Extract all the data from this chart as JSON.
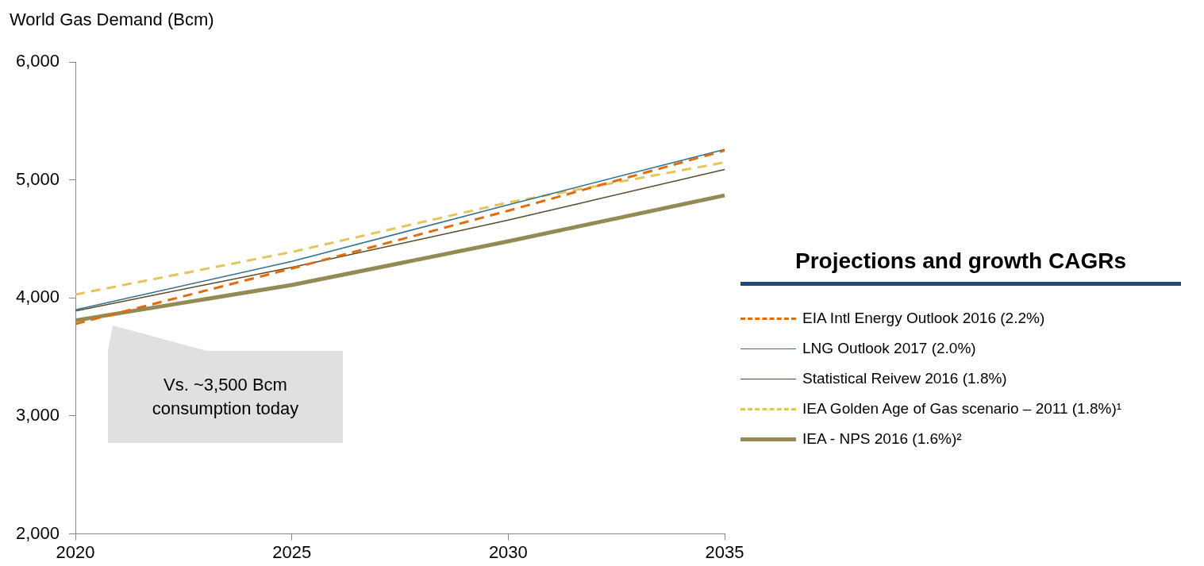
{
  "chart_data": {
    "type": "line",
    "ylabel": "World Gas Demand (Bcm)",
    "legend_title": "Projections and growth CAGRs",
    "legend": "right",
    "grid": false,
    "marker": "none",
    "x": [
      2020,
      2025,
      2030,
      2035
    ],
    "xlim": [
      2020,
      2035
    ],
    "xticks": [
      2020,
      2025,
      2030,
      2035
    ],
    "ylim": [
      2000,
      6000
    ],
    "yticks": [
      {
        "value": 2000,
        "label": "2,000"
      },
      {
        "value": 3000,
        "label": "3,000"
      },
      {
        "value": 4000,
        "label": "4,000"
      },
      {
        "value": 5000,
        "label": "5,000"
      },
      {
        "value": 6000,
        "label": "6,000"
      }
    ],
    "series": [
      {
        "name": "EIA Intl Energy Outlook 2016 (2.2%)",
        "color": "#e36c0a",
        "line_style": "dashed",
        "values": [
          3780,
          4250,
          4740,
          5250
        ]
      },
      {
        "name": "LNG Outlook 2017 (2.0%)",
        "color": "#31708f",
        "line_style": "solid",
        "values": [
          3900,
          4310,
          4790,
          5260
        ]
      },
      {
        "name": "Statistical Reivew 2016 (1.8%)",
        "color": "#5a4a2a",
        "line_style": "solid",
        "values": [
          3890,
          4260,
          4660,
          5090
        ]
      },
      {
        "name": "IEA Golden Age of Gas scenario – 2011 (1.8%)¹",
        "color": "#e6c35c",
        "line_style": "dashed",
        "values": [
          4030,
          4390,
          4810,
          5150
        ]
      },
      {
        "name": "IEA - NPS 2016 (1.6%)²",
        "color": "#948a54",
        "line_style": "solid",
        "values": [
          3810,
          4110,
          4480,
          4870
        ]
      }
    ],
    "annotations": [
      "Vs. ~3,500 Bcm consumption today"
    ]
  }
}
